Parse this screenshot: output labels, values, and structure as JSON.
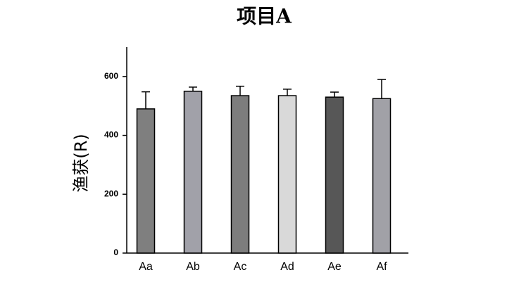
{
  "chart_data": {
    "type": "bar",
    "title": "项目A",
    "y_label": "渔获(R)",
    "categories": [
      "Aa",
      "Ab",
      "Ac",
      "Ad",
      "Ae",
      "Af"
    ],
    "values": [
      490,
      550,
      535,
      535,
      530,
      525
    ],
    "errors": [
      58,
      14,
      32,
      22,
      17,
      65
    ],
    "colors": [
      "#7f7f7f",
      "#a1a1a9",
      "#7d7d7d",
      "#d9d9d9",
      "#575757",
      "#a1a1a7"
    ],
    "ylim": [
      0,
      700
    ],
    "yticks": [
      0,
      200,
      400,
      600
    ]
  }
}
